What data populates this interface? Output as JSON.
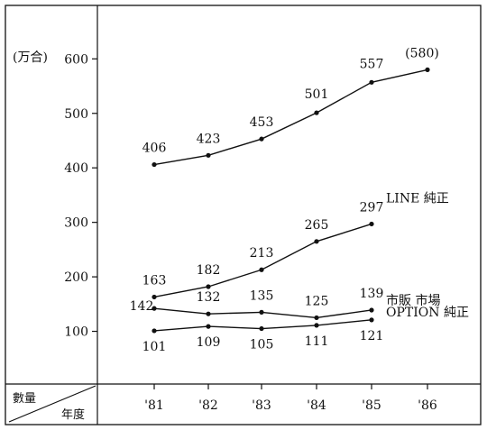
{
  "chart_data": {
    "type": "line",
    "unit_label": "(万合)",
    "corner_top": "數量",
    "corner_bottom": "年度",
    "categories": [
      "'81",
      "'82",
      "'83",
      "'84",
      "'85",
      "'86"
    ],
    "yticks": [
      "100",
      "200",
      "300",
      "400",
      "500",
      "600"
    ],
    "ylim": [
      0,
      650
    ],
    "grid": false,
    "series": [
      {
        "name": "",
        "values": [
          406,
          423,
          453,
          501,
          557,
          580
        ],
        "labels": [
          "406",
          "423",
          "453",
          "501",
          "557",
          "(580)"
        ]
      },
      {
        "name": "LINE 純正",
        "values": [
          163,
          182,
          213,
          265,
          297,
          null
        ],
        "labels": [
          "163",
          "182",
          "213",
          "265",
          "297",
          ""
        ]
      },
      {
        "name": "市販 市場",
        "values": [
          142,
          132,
          135,
          125,
          139,
          null
        ],
        "labels": [
          "142",
          "132",
          "135",
          "125",
          "139",
          ""
        ]
      },
      {
        "name": "OPTION 純正",
        "values": [
          101,
          109,
          105,
          111,
          121,
          null
        ],
        "labels": [
          "101",
          "109",
          "105",
          "111",
          "121",
          ""
        ]
      }
    ]
  }
}
